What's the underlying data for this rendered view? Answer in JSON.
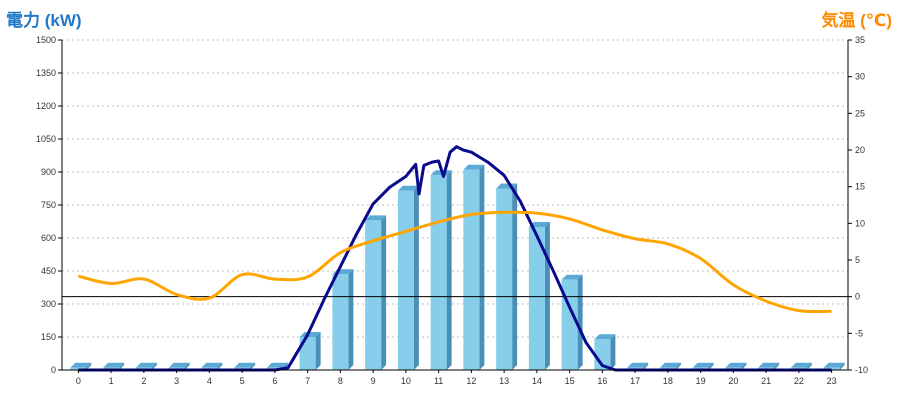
{
  "chart_data": {
    "type": "bar",
    "title_left": "電力 (kW)",
    "title_right": "気温 (℃)",
    "categories": [
      "0",
      "1",
      "2",
      "3",
      "4",
      "5",
      "6",
      "7",
      "8",
      "9",
      "10",
      "11",
      "12",
      "13",
      "14",
      "15",
      "16",
      "17",
      "18",
      "19",
      "20",
      "21",
      "22",
      "23"
    ],
    "y_left": {
      "min": 0,
      "max": 1500,
      "ticks": [
        0,
        150,
        300,
        450,
        600,
        750,
        900,
        1050,
        1200,
        1350,
        1500
      ]
    },
    "y_right": {
      "min": -10,
      "max": 35,
      "ticks": [
        -10,
        -5,
        0,
        5,
        10,
        15,
        20,
        25,
        30,
        35
      ]
    },
    "bars": {
      "color": "#87ceeb",
      "values": [
        10,
        10,
        10,
        10,
        10,
        10,
        10,
        150,
        435,
        680,
        815,
        885,
        910,
        825,
        650,
        410,
        140,
        10,
        10,
        10,
        10,
        10,
        10,
        10
      ]
    },
    "power_line": {
      "color": "#0a0a8c",
      "points": [
        [
          0,
          0
        ],
        [
          1,
          0
        ],
        [
          2,
          0
        ],
        [
          3,
          0
        ],
        [
          4,
          0
        ],
        [
          5,
          0
        ],
        [
          6,
          0
        ],
        [
          6.4,
          10
        ],
        [
          7,
          160
        ],
        [
          7.5,
          320
        ],
        [
          8,
          470
        ],
        [
          8.5,
          620
        ],
        [
          9,
          755
        ],
        [
          9.5,
          830
        ],
        [
          10,
          880
        ],
        [
          10.3,
          935
        ],
        [
          10.4,
          800
        ],
        [
          10.55,
          930
        ],
        [
          10.8,
          945
        ],
        [
          11,
          950
        ],
        [
          11.15,
          880
        ],
        [
          11.35,
          990
        ],
        [
          11.55,
          1015
        ],
        [
          11.75,
          1000
        ],
        [
          12,
          990
        ],
        [
          12.5,
          945
        ],
        [
          13,
          885
        ],
        [
          13.5,
          765
        ],
        [
          14,
          610
        ],
        [
          14.5,
          450
        ],
        [
          15,
          285
        ],
        [
          15.5,
          125
        ],
        [
          16,
          20
        ],
        [
          16.4,
          0
        ],
        [
          17,
          0
        ],
        [
          18,
          0
        ],
        [
          19,
          0
        ],
        [
          20,
          0
        ],
        [
          21,
          0
        ],
        [
          22,
          0
        ],
        [
          23,
          0
        ]
      ]
    },
    "temp_line": {
      "color": "#ffa500",
      "values": [
        2.8,
        1.8,
        2.4,
        0.3,
        -0.2,
        3.0,
        2.4,
        2.7,
        6.0,
        7.6,
        8.9,
        10.2,
        11.2,
        11.5,
        11.4,
        10.6,
        9.1,
        7.9,
        7.2,
        5.2,
        1.6,
        -0.6,
        -1.9,
        -2.0
      ]
    },
    "zero_temp_line": 0,
    "grid": true
  }
}
